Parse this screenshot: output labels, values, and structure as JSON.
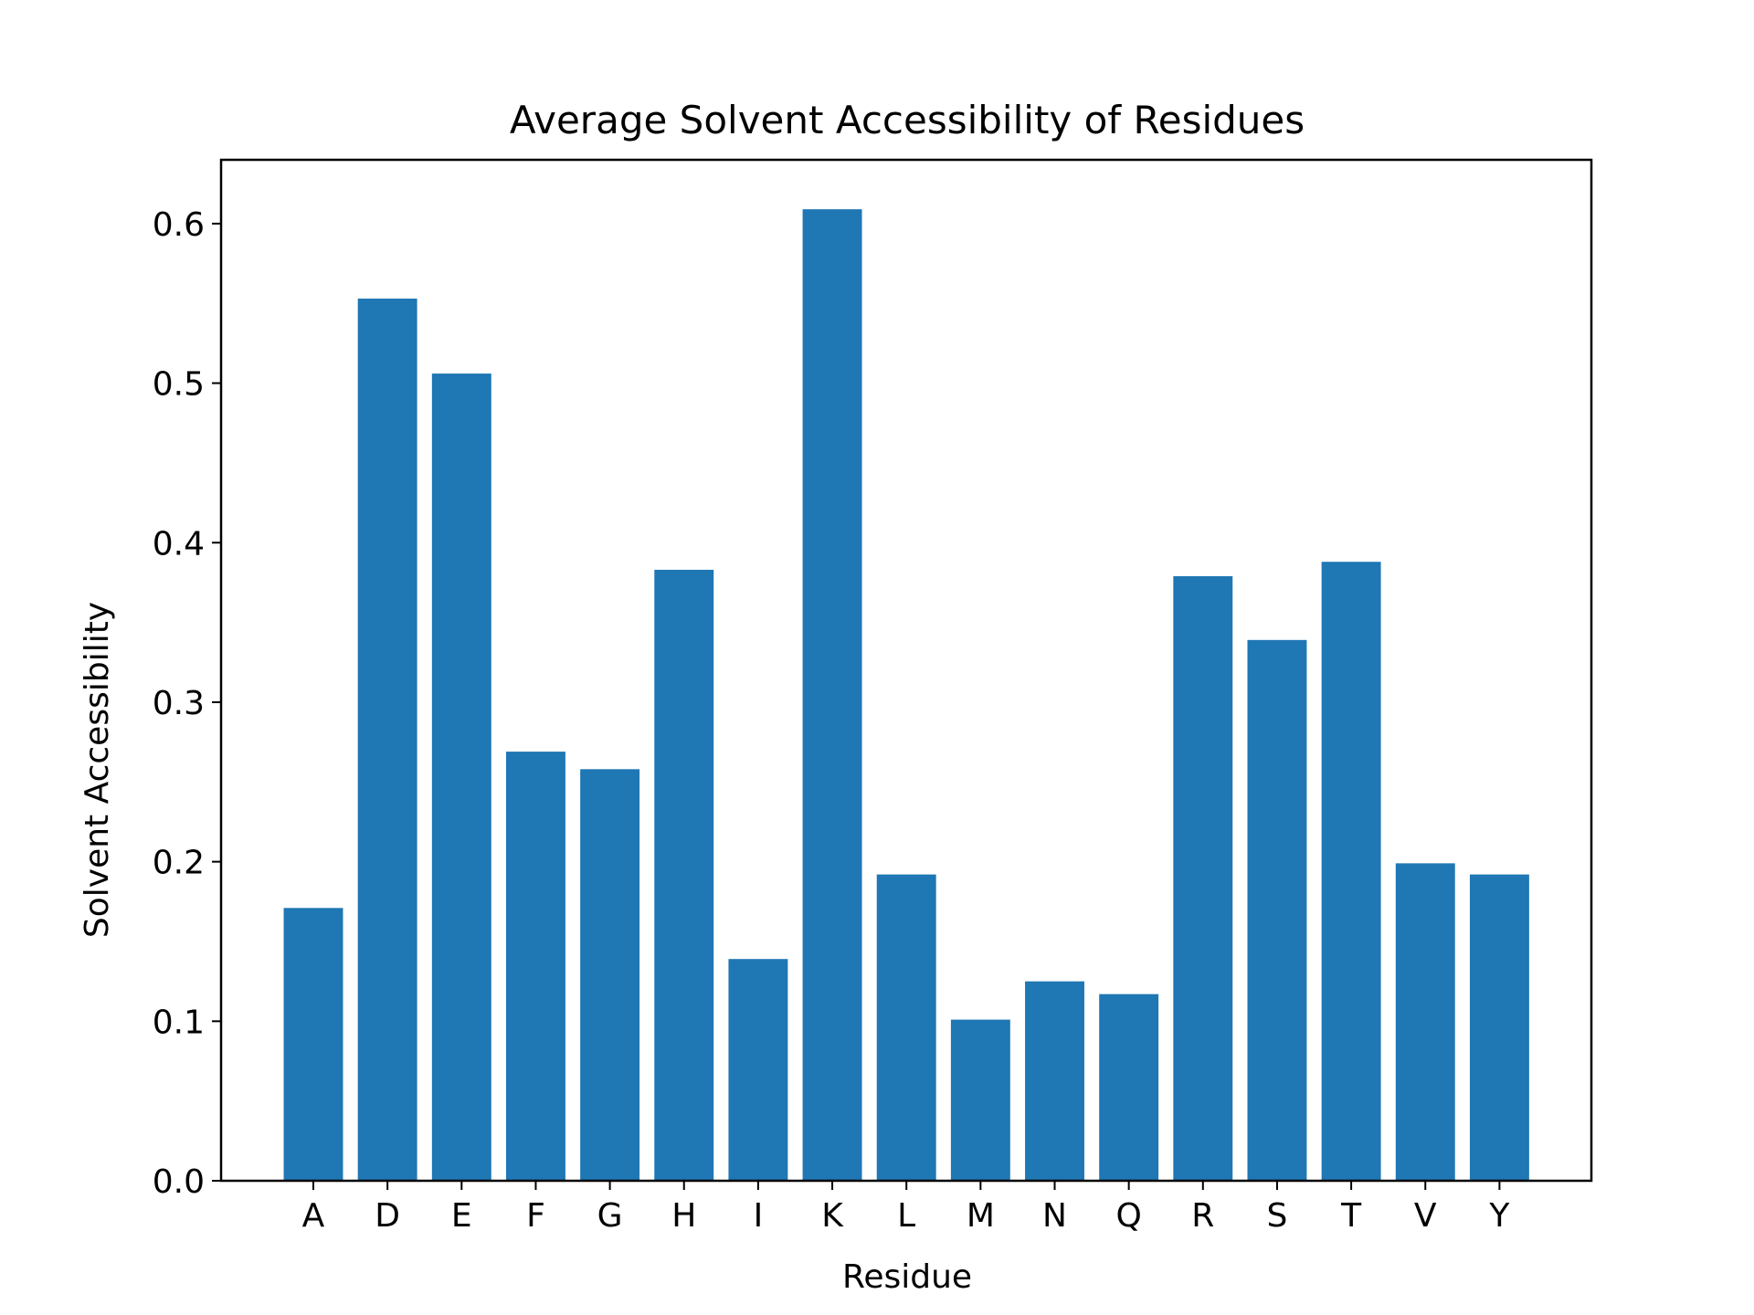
{
  "chart_data": {
    "type": "bar",
    "title": "Average Solvent Accessibility of Residues",
    "xlabel": "Residue",
    "ylabel": "Solvent Accessibility",
    "categories": [
      "A",
      "D",
      "E",
      "F",
      "G",
      "H",
      "I",
      "K",
      "L",
      "M",
      "N",
      "Q",
      "R",
      "S",
      "T",
      "V",
      "Y"
    ],
    "values": [
      0.171,
      0.553,
      0.506,
      0.269,
      0.258,
      0.383,
      0.139,
      0.609,
      0.192,
      0.101,
      0.125,
      0.117,
      0.379,
      0.339,
      0.388,
      0.199,
      0.192
    ],
    "ylim": [
      0,
      0.64
    ],
    "yticks": [
      0.0,
      0.1,
      0.2,
      0.3,
      0.4,
      0.5,
      0.6
    ],
    "ytick_labels": [
      "0.0",
      "0.1",
      "0.2",
      "0.3",
      "0.4",
      "0.5",
      "0.6"
    ],
    "grid": false,
    "legend": "none",
    "colors": {
      "bar": "#1f77b4",
      "axes": "#000000",
      "background": "#ffffff"
    }
  }
}
